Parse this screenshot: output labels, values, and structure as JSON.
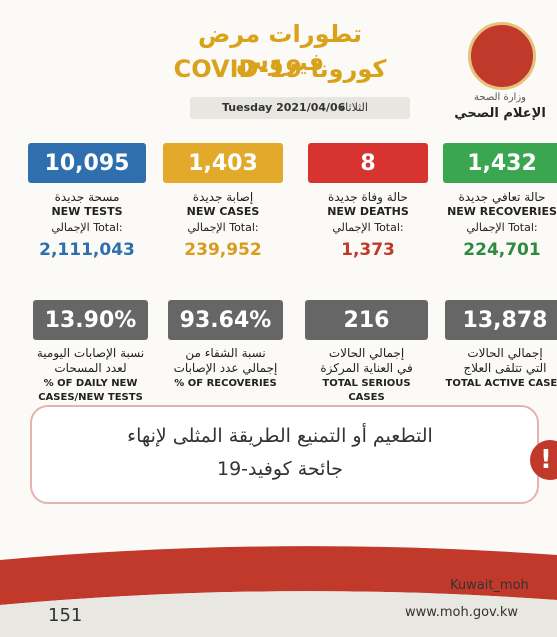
{
  "header": {
    "title_ar": "تطورات مرض فيروس",
    "title_en": "COVID-19 كورونا",
    "date_en": "Tuesday 2021/04/06",
    "date_ar": "الثلاثاء",
    "ministry": "وزارة الصحة",
    "department": "الإعلام الصحي"
  },
  "daily": [
    {
      "value": "10,095",
      "label_ar": "مسحة جديدة",
      "label_en": "NEW TESTS",
      "total_label": "الإجمالي Total:",
      "total": "2,111,043"
    },
    {
      "value": "1,403",
      "label_ar": "إصابة جديدة",
      "label_en": "NEW CASES",
      "total_label": "الإجمالي Total:",
      "total": "239,952"
    },
    {
      "value": "8",
      "label_ar": "حالة وفاة جديدة",
      "label_en": "NEW DEATHS",
      "total_label": "الإجمالي Total:",
      "total": "1,373"
    },
    {
      "value": "1,432",
      "label_ar": "حالة تعافي جديدة",
      "label_en": "NEW RECOVERIES",
      "total_label": "الإجمالي Total:",
      "total": "224,701"
    }
  ],
  "summary": [
    {
      "value": "13.90%",
      "label_ar_1": "نسبة الإصابات اليومية",
      "label_ar_2": "لعدد المسحات",
      "label_en": "% OF DAILY NEW CASES/NEW TESTS"
    },
    {
      "value": "93.64%",
      "label_ar_1": "نسبة الشفاء من",
      "label_ar_2": "إجمالي عدد الإصابات",
      "label_en": "% OF RECOVERIES"
    },
    {
      "value": "216",
      "label_ar_1": "إجمالي الحالات",
      "label_ar_2": "في العناية المركزة",
      "label_en": "TOTAL SERIOUS CASES"
    },
    {
      "value": "13,878",
      "label_ar_1": "إجمالي الحالات",
      "label_ar_2": "التي تتلقى العلاج",
      "label_en": "TOTAL ACTIVE CASES"
    }
  ],
  "message": {
    "line1": "التطعيم أو التمنيع الطريقة المثلى لإنهاء",
    "line2": "جائحة كوفيد-19"
  },
  "footer": {
    "social": "Kuwait_moh",
    "website": "www.moh.gov.kw",
    "hotline": "151"
  }
}
